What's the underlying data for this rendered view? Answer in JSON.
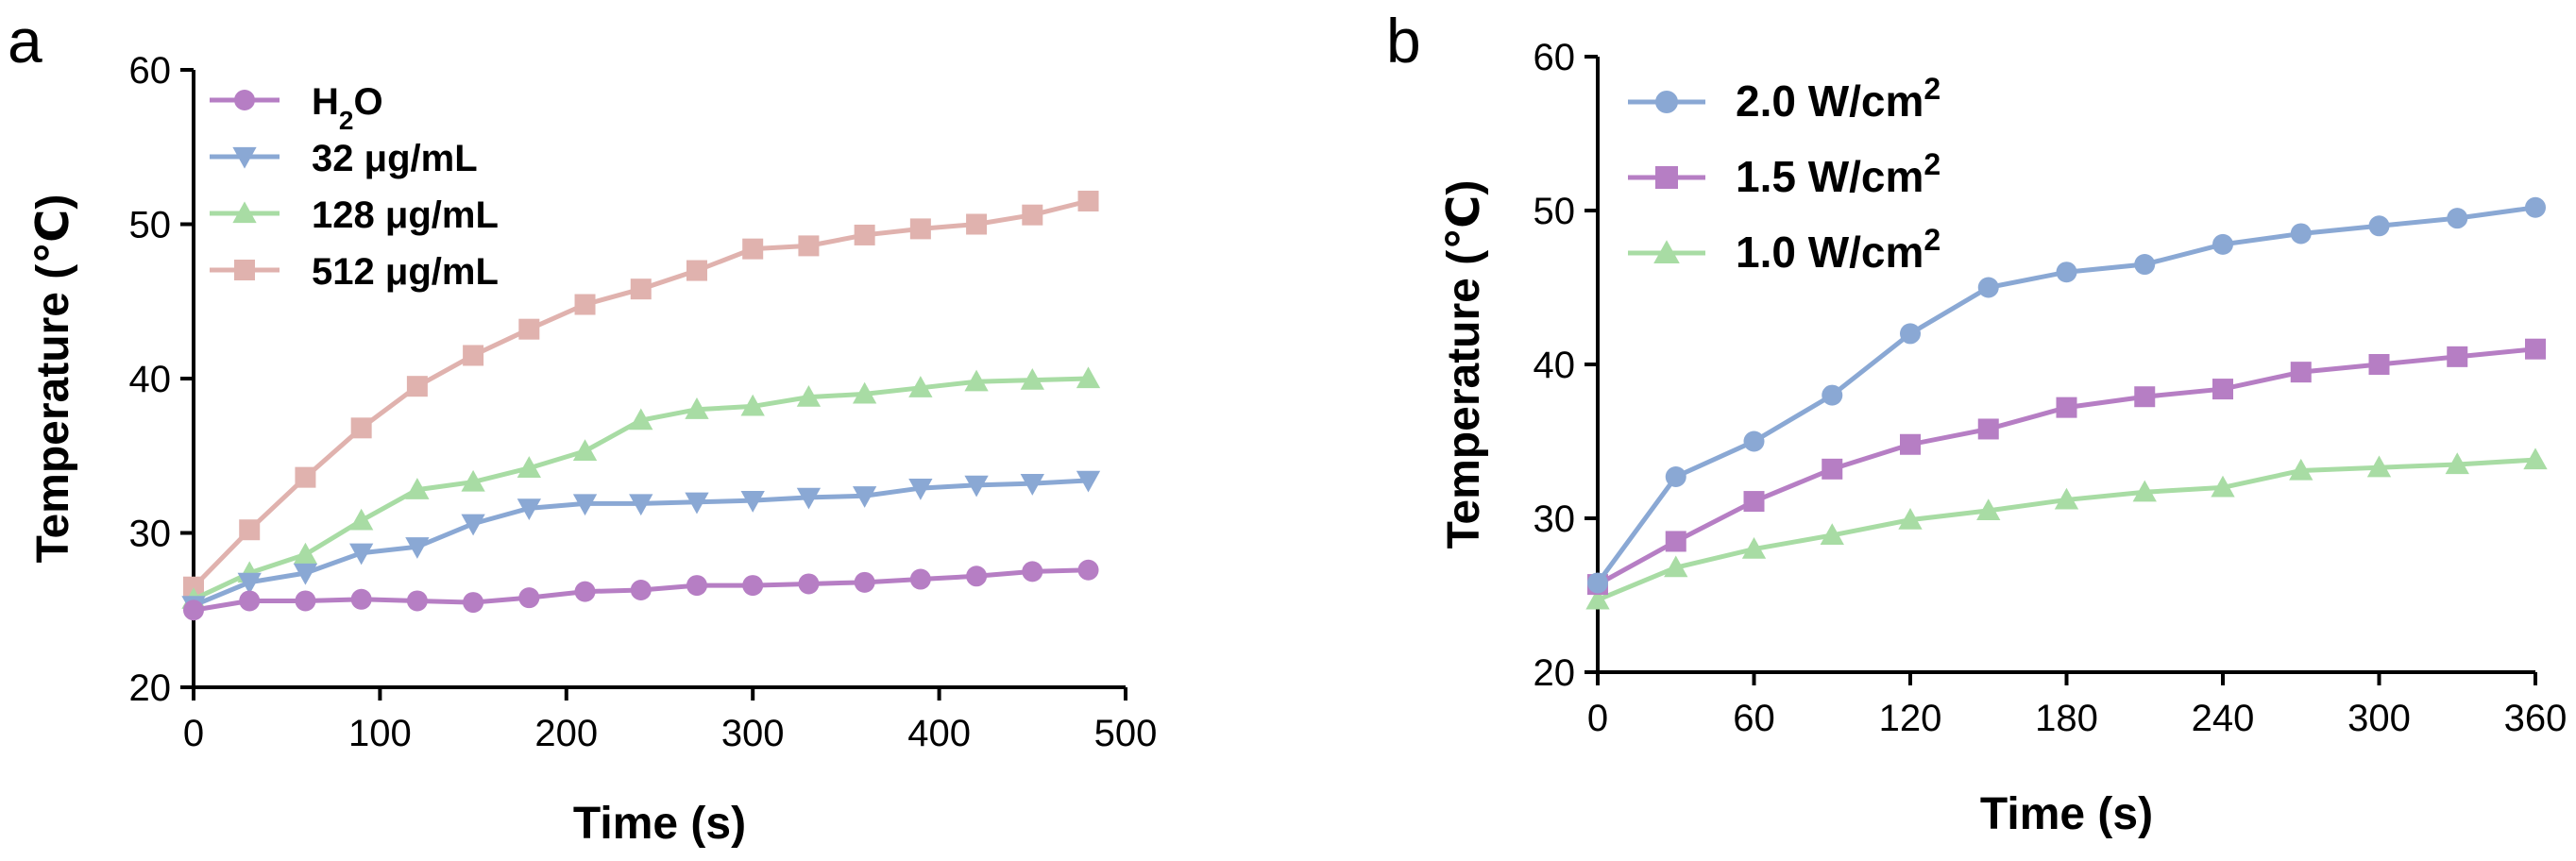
{
  "chart_data": [
    {
      "panel": "a",
      "type": "line",
      "title": "",
      "xlabel": "Time (s)",
      "ylabel": "Temperature (℃)",
      "xlim": [
        0,
        500
      ],
      "ylim": [
        20,
        60
      ],
      "xticks": [
        "0",
        "100",
        "200",
        "300",
        "400",
        "500"
      ],
      "yticks": [
        "20",
        "30",
        "40",
        "50",
        "60"
      ],
      "legend_position": "top-left",
      "x": [
        0,
        30,
        60,
        90,
        120,
        150,
        180,
        210,
        240,
        270,
        300,
        330,
        360,
        390,
        420,
        450,
        480
      ],
      "series": [
        {
          "name": "H₂O",
          "label_main": "H",
          "label_sub": "2",
          "label_tail": "O",
          "color": "#b67ec4",
          "marker": "circle",
          "values": [
            25.0,
            25.6,
            25.6,
            25.7,
            25.6,
            25.5,
            25.8,
            26.2,
            26.3,
            26.6,
            26.6,
            26.7,
            26.8,
            27.0,
            27.2,
            27.5,
            27.6
          ]
        },
        {
          "name": "32 μg/mL",
          "label_main": "32 μg/mL",
          "color": "#8aa8d4",
          "marker": "triangle-down",
          "values": [
            25.3,
            26.8,
            27.4,
            28.7,
            29.1,
            30.6,
            31.6,
            31.9,
            31.9,
            32.0,
            32.1,
            32.3,
            32.4,
            32.9,
            33.1,
            33.2,
            33.4
          ]
        },
        {
          "name": "128 μg/mL",
          "label_main": "128 μg/mL",
          "color": "#a8dca4",
          "marker": "triangle-up",
          "values": [
            25.7,
            27.4,
            28.6,
            30.8,
            32.8,
            33.3,
            34.2,
            35.3,
            37.3,
            38.0,
            38.2,
            38.8,
            39.0,
            39.4,
            39.8,
            39.9,
            40.0
          ]
        },
        {
          "name": "512 μg/mL",
          "label_main": "512 μg/mL",
          "color": "#e0b2ae",
          "marker": "square",
          "values": [
            26.5,
            30.2,
            33.6,
            36.8,
            39.5,
            41.5,
            43.2,
            44.8,
            45.8,
            47.0,
            48.4,
            48.6,
            49.3,
            49.7,
            50.0,
            50.6,
            51.5
          ]
        }
      ]
    },
    {
      "panel": "b",
      "type": "line",
      "title": "",
      "xlabel": "Time (s)",
      "ylabel": "Temperature (℃)",
      "xlim": [
        0,
        360
      ],
      "ylim": [
        20,
        60
      ],
      "xticks": [
        "0",
        "60",
        "120",
        "180",
        "240",
        "300",
        "360"
      ],
      "yticks": [
        "20",
        "30",
        "40",
        "50",
        "60"
      ],
      "legend_position": "top-left",
      "x": [
        0,
        30,
        60,
        90,
        120,
        150,
        180,
        210,
        240,
        270,
        300,
        330,
        360
      ],
      "series": [
        {
          "name": "2.0 W/cm²",
          "label_main": "2.0 W/cm",
          "label_sup": "2",
          "color": "#8aa8d4",
          "marker": "circle",
          "values": [
            25.8,
            32.7,
            35.0,
            38.0,
            42.0,
            45.0,
            46.0,
            46.5,
            47.8,
            48.5,
            49.0,
            49.5,
            50.2
          ]
        },
        {
          "name": "1.5 W/cm²",
          "label_main": "1.5 W/cm",
          "label_sup": "2",
          "color": "#b67ec4",
          "marker": "square",
          "values": [
            25.7,
            28.5,
            31.1,
            33.2,
            34.8,
            35.8,
            37.2,
            37.9,
            38.4,
            39.5,
            40.0,
            40.5,
            41.0
          ]
        },
        {
          "name": "1.0 W/cm²",
          "label_main": "1.0 W/cm",
          "label_sup": "2",
          "color": "#a8dca4",
          "marker": "triangle-up",
          "values": [
            24.7,
            26.8,
            28.0,
            28.9,
            29.9,
            30.5,
            31.2,
            31.7,
            32.0,
            33.1,
            33.3,
            33.5,
            33.8
          ]
        }
      ]
    }
  ],
  "panels": {
    "a": "a",
    "b": "b"
  }
}
